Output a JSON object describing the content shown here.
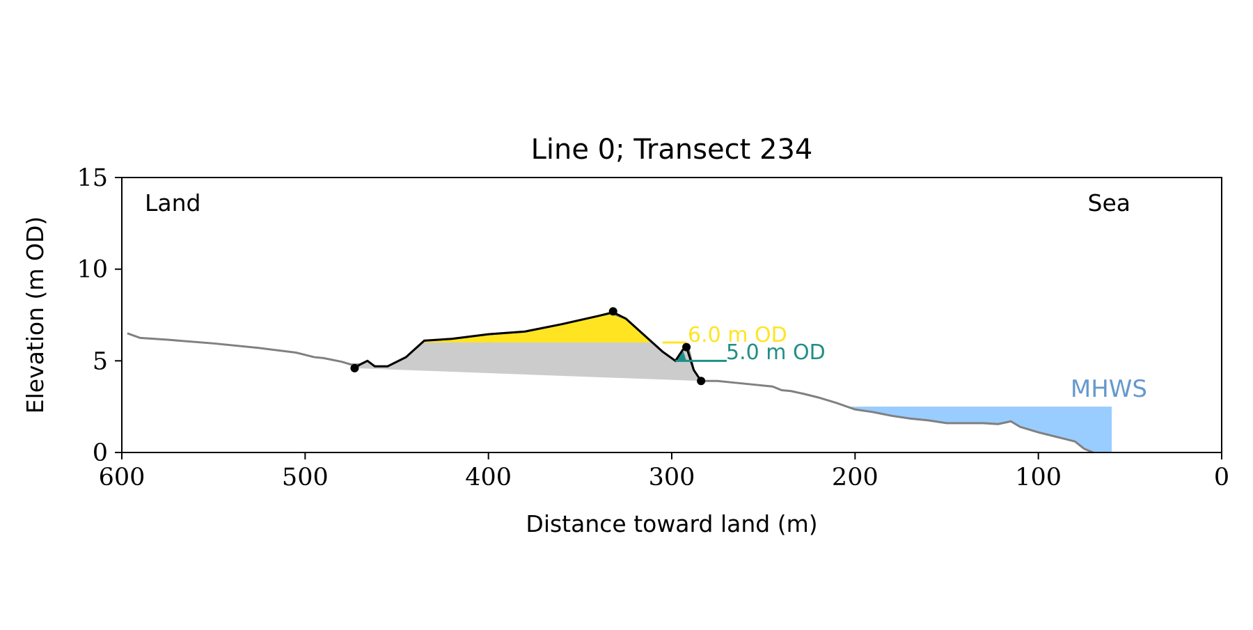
{
  "chart_data": {
    "type": "area",
    "title": "Line 0; Transect 234",
    "xlabel": "Distance toward land (m)",
    "ylabel": "Elevation (m OD)",
    "xlim": [
      600,
      0
    ],
    "ylim": [
      0,
      15
    ],
    "x_ticks": [
      600,
      500,
      400,
      300,
      200,
      100,
      0
    ],
    "y_ticks": [
      0,
      5,
      10,
      15
    ],
    "grid": false,
    "annotations": {
      "land": "Land",
      "sea": "Sea",
      "mhws": "MHWS",
      "level_6": "6.0 m OD",
      "level_5": "5.0 m OD"
    },
    "colors": {
      "profile": "#808080",
      "dune": "#000000",
      "above_6m_fill": "#ffe422",
      "dune_fill": "#cccccc",
      "level_5_line": "#1f8f86",
      "mhws_fill": "#99ccff",
      "mhws_label": "#6699cc"
    },
    "series": [
      {
        "name": "profile",
        "points": [
          [
            597,
            6.5
          ],
          [
            590,
            6.25
          ],
          [
            575,
            6.15
          ],
          [
            550,
            5.95
          ],
          [
            525,
            5.7
          ],
          [
            505,
            5.45
          ],
          [
            495,
            5.2
          ],
          [
            490,
            5.15
          ],
          [
            480,
            4.95
          ],
          [
            475,
            4.8
          ],
          [
            470,
            4.8
          ],
          [
            466,
            5.0
          ],
          [
            462,
            4.7
          ],
          [
            455,
            4.7
          ],
          [
            445,
            5.2
          ],
          [
            435,
            6.1
          ],
          [
            420,
            6.2
          ],
          [
            400,
            6.45
          ],
          [
            380,
            6.6
          ],
          [
            360,
            7.0
          ],
          [
            340,
            7.45
          ],
          [
            333,
            7.6
          ],
          [
            325,
            7.3
          ],
          [
            315,
            6.4
          ],
          [
            305,
            5.5
          ],
          [
            298,
            5.0
          ],
          [
            294,
            5.6
          ],
          [
            291,
            5.7
          ],
          [
            288,
            4.5
          ],
          [
            284,
            3.9
          ],
          [
            275,
            3.9
          ],
          [
            265,
            3.8
          ],
          [
            255,
            3.7
          ],
          [
            245,
            3.6
          ],
          [
            240,
            3.4
          ],
          [
            235,
            3.35
          ],
          [
            228,
            3.2
          ],
          [
            220,
            3.0
          ],
          [
            210,
            2.7
          ],
          [
            200,
            2.35
          ],
          [
            190,
            2.2
          ],
          [
            180,
            2.0
          ],
          [
            170,
            1.85
          ],
          [
            160,
            1.75
          ],
          [
            150,
            1.6
          ],
          [
            140,
            1.6
          ],
          [
            130,
            1.6
          ],
          [
            122,
            1.55
          ],
          [
            115,
            1.7
          ],
          [
            110,
            1.4
          ],
          [
            100,
            1.1
          ],
          [
            90,
            0.85
          ],
          [
            80,
            0.6
          ],
          [
            75,
            0.2
          ],
          [
            70,
            0.0
          ]
        ]
      },
      {
        "name": "dune",
        "points": [
          [
            473,
            4.6
          ],
          [
            470,
            4.8
          ],
          [
            466,
            5.0
          ],
          [
            462,
            4.7
          ],
          [
            455,
            4.7
          ],
          [
            445,
            5.2
          ],
          [
            435,
            6.1
          ],
          [
            420,
            6.2
          ],
          [
            400,
            6.45
          ],
          [
            380,
            6.6
          ],
          [
            360,
            7.0
          ],
          [
            340,
            7.45
          ],
          [
            332,
            7.65
          ],
          [
            325,
            7.3
          ],
          [
            315,
            6.4
          ],
          [
            305,
            5.5
          ],
          [
            298,
            5.0
          ],
          [
            294,
            5.6
          ],
          [
            292,
            5.75
          ],
          [
            288,
            4.5
          ],
          [
            284,
            3.9
          ]
        ],
        "markers": [
          [
            473,
            4.6
          ],
          [
            332,
            7.7
          ],
          [
            292,
            5.75
          ],
          [
            284,
            3.9
          ]
        ]
      }
    ],
    "dune_base": [
      [
        473,
        4.6
      ],
      [
        284,
        3.9
      ]
    ],
    "levels": [
      {
        "y": 6.0,
        "x_start": 305,
        "x_end": 292
      },
      {
        "y": 5.0,
        "x_start": 298,
        "x_end": 270
      }
    ],
    "mhws": {
      "y": 2.5,
      "x_start": 205,
      "x_end": 60
    }
  }
}
